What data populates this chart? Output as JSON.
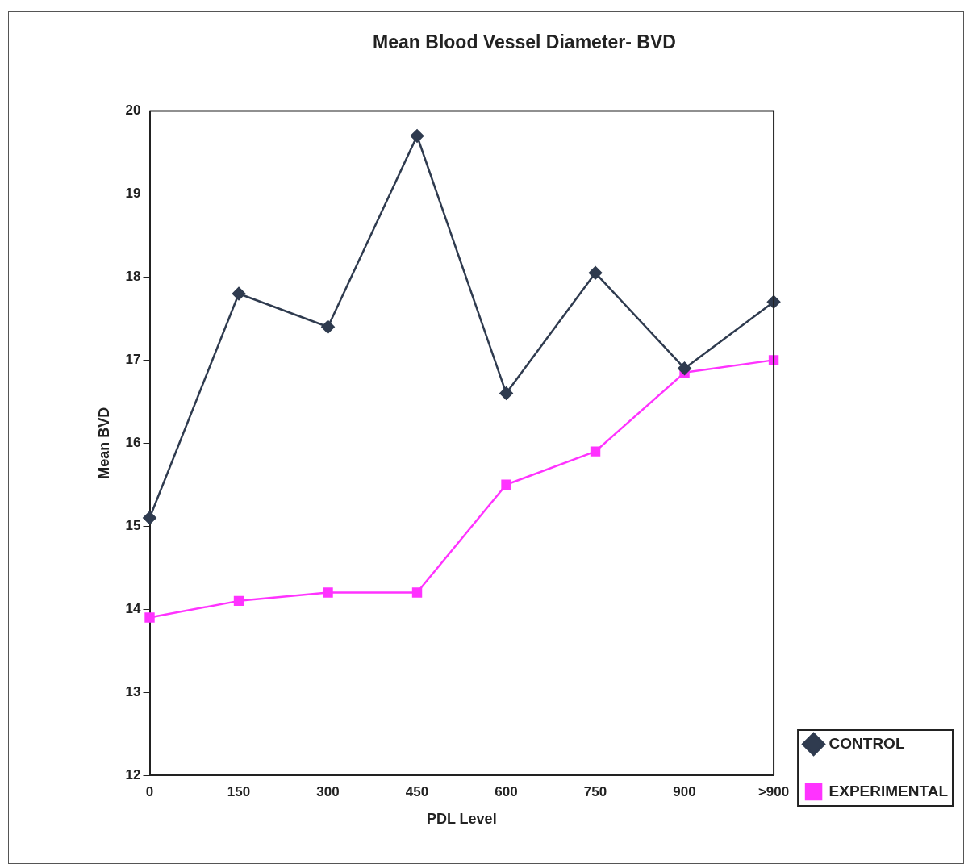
{
  "chart_data": {
    "type": "line",
    "title": "Mean Blood Vessel Diameter- BVD",
    "xlabel": "PDL Level",
    "ylabel": "Mean BVD",
    "categories": [
      "0",
      "150",
      "300",
      "450",
      "600",
      "750",
      "900",
      ">900"
    ],
    "series": [
      {
        "name": "CONTROL",
        "color": "#2f3b4f",
        "marker": "diamond",
        "values": [
          15.1,
          17.8,
          17.4,
          19.7,
          16.6,
          18.05,
          16.9,
          17.7
        ]
      },
      {
        "name": "EXPERIMENTAL",
        "color": "#ff33ff",
        "marker": "square",
        "values": [
          13.9,
          14.1,
          14.2,
          14.2,
          15.5,
          15.9,
          16.85,
          17.0
        ]
      }
    ],
    "ylim": [
      12,
      20
    ],
    "yticks": [
      12,
      13,
      14,
      15,
      16,
      17,
      18,
      19,
      20
    ],
    "grid": false,
    "legend": "bottom right",
    "line_style": "solid"
  }
}
